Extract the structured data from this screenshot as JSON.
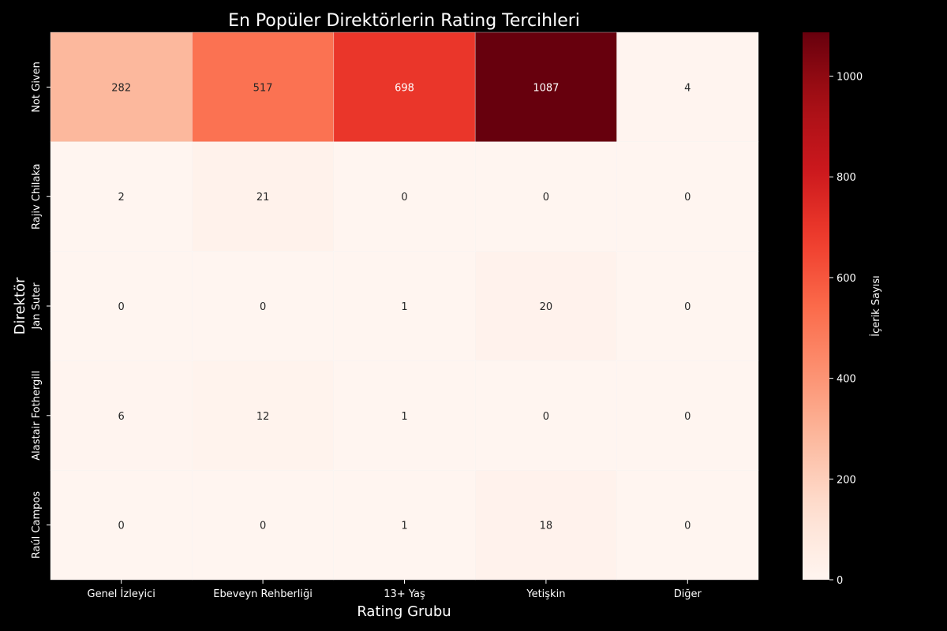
{
  "chart_data": {
    "type": "heatmap",
    "title": "En Popüler Direktörlerin Rating Tercihleri",
    "xlabel": "Rating Grubu",
    "ylabel": "Direktör",
    "x_categories": [
      "Genel İzleyici",
      "Ebeveyn Rehberliği",
      "13+ Yaş",
      "Yetişkin",
      "Diğer"
    ],
    "y_categories": [
      "Not Given",
      "Rajiv Chilaka",
      "Jan Suter",
      "Alastair Fothergill",
      "Raúl Campos"
    ],
    "values": [
      [
        282,
        517,
        698,
        1087,
        4
      ],
      [
        2,
        21,
        0,
        0,
        0
      ],
      [
        0,
        0,
        1,
        20,
        0
      ],
      [
        6,
        12,
        1,
        0,
        0
      ],
      [
        0,
        0,
        1,
        18,
        0
      ]
    ],
    "colorbar": {
      "label": "İçerik Sayısı",
      "range": [
        0,
        1087
      ],
      "ticks": [
        0,
        200,
        400,
        600,
        800,
        1000
      ]
    },
    "colormap": "Reds",
    "colors": {
      "background": "#000000",
      "text": "#ffffff",
      "cell_border": "#ffffff",
      "dark_text": "#262626",
      "light_text": "#ffffff"
    },
    "annotated": true
  }
}
